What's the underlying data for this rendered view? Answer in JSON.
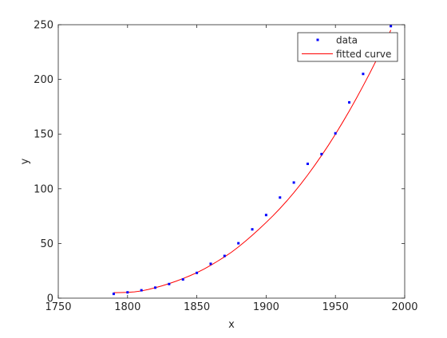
{
  "chart_data": {
    "type": "scatter",
    "title": "",
    "xlabel": "x",
    "ylabel": "y",
    "xlim": [
      1750,
      2000
    ],
    "ylim": [
      0,
      250
    ],
    "xticks": [
      1750,
      1800,
      1850,
      1900,
      1950,
      2000
    ],
    "yticks": [
      0,
      50,
      100,
      150,
      200,
      250
    ],
    "grid": false,
    "legend_position": "top-right",
    "series": [
      {
        "name": "data",
        "kind": "points",
        "color": "#0000ff",
        "x": [
          1790,
          1800,
          1810,
          1820,
          1830,
          1840,
          1850,
          1860,
          1870,
          1880,
          1890,
          1900,
          1910,
          1920,
          1930,
          1940,
          1950,
          1960,
          1970,
          1980,
          1990
        ],
        "y": [
          3.9,
          5.3,
          7.2,
          9.6,
          12.9,
          17.1,
          23.1,
          31.4,
          38.6,
          50.2,
          62.9,
          76.0,
          92.0,
          105.7,
          122.8,
          131.7,
          150.7,
          179.0,
          205.0,
          226.5,
          248.7
        ]
      },
      {
        "name": "fitted curve",
        "kind": "line",
        "color": "#ff0000",
        "x": [
          1790,
          1795,
          1800,
          1805,
          1810,
          1815,
          1820,
          1825,
          1830,
          1835,
          1840,
          1845,
          1850,
          1855,
          1860,
          1865,
          1870,
          1875,
          1880,
          1885,
          1890,
          1895,
          1900,
          1905,
          1910,
          1915,
          1920,
          1925,
          1930,
          1935,
          1940,
          1945,
          1950,
          1955,
          1960,
          1965,
          1970,
          1975,
          1980,
          1985,
          1990
        ],
        "y": [
          5.0,
          5.1,
          5.3,
          5.7,
          6.6,
          7.9,
          9.6,
          11.3,
          13.3,
          15.5,
          17.9,
          20.5,
          23.3,
          26.5,
          30.0,
          33.8,
          37.8,
          42.0,
          46.8,
          52.0,
          57.5,
          63.2,
          69.2,
          75.4,
          82.0,
          89.0,
          96.4,
          104.3,
          112.6,
          121.3,
          130.4,
          139.9,
          149.9,
          160.3,
          171.1,
          182.4,
          194.1,
          206.2,
          218.7,
          231.7,
          245.1
        ]
      }
    ]
  }
}
